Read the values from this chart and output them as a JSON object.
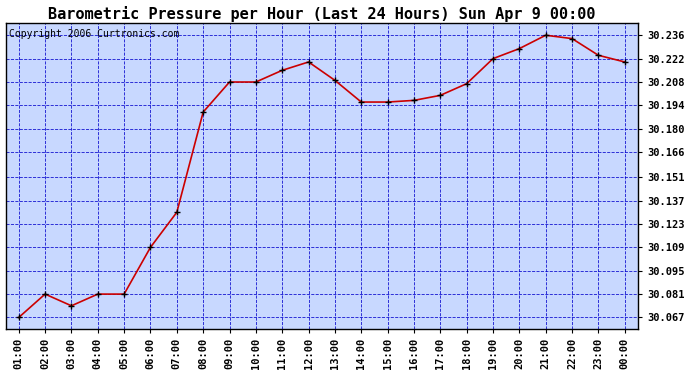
{
  "title": "Barometric Pressure per Hour (Last 24 Hours) Sun Apr 9 00:00",
  "copyright": "Copyright 2006 Curtronics.com",
  "x_labels": [
    "01:00",
    "02:00",
    "03:00",
    "04:00",
    "05:00",
    "06:00",
    "07:00",
    "08:00",
    "09:00",
    "10:00",
    "11:00",
    "12:00",
    "13:00",
    "14:00",
    "15:00",
    "16:00",
    "17:00",
    "18:00",
    "19:00",
    "20:00",
    "21:00",
    "22:00",
    "23:00",
    "00:00"
  ],
  "y_values": [
    30.067,
    30.081,
    30.074,
    30.081,
    30.081,
    30.109,
    30.13,
    30.19,
    30.208,
    30.208,
    30.215,
    30.22,
    30.209,
    30.196,
    30.196,
    30.197,
    30.2,
    30.207,
    30.222,
    30.228,
    30.236,
    30.234,
    30.224,
    30.22
  ],
  "ylim_min": 30.06,
  "ylim_max": 30.2435,
  "y_ticks": [
    30.067,
    30.081,
    30.095,
    30.109,
    30.123,
    30.137,
    30.151,
    30.166,
    30.18,
    30.194,
    30.208,
    30.222,
    30.236
  ],
  "line_color": "#cc0000",
  "marker_color": "#000000",
  "bg_color": "#ffffff",
  "plot_bg_color": "#c8d8ff",
  "grid_color": "#0000cc",
  "title_fontsize": 11,
  "copyright_fontsize": 7,
  "tick_fontsize": 7.5
}
